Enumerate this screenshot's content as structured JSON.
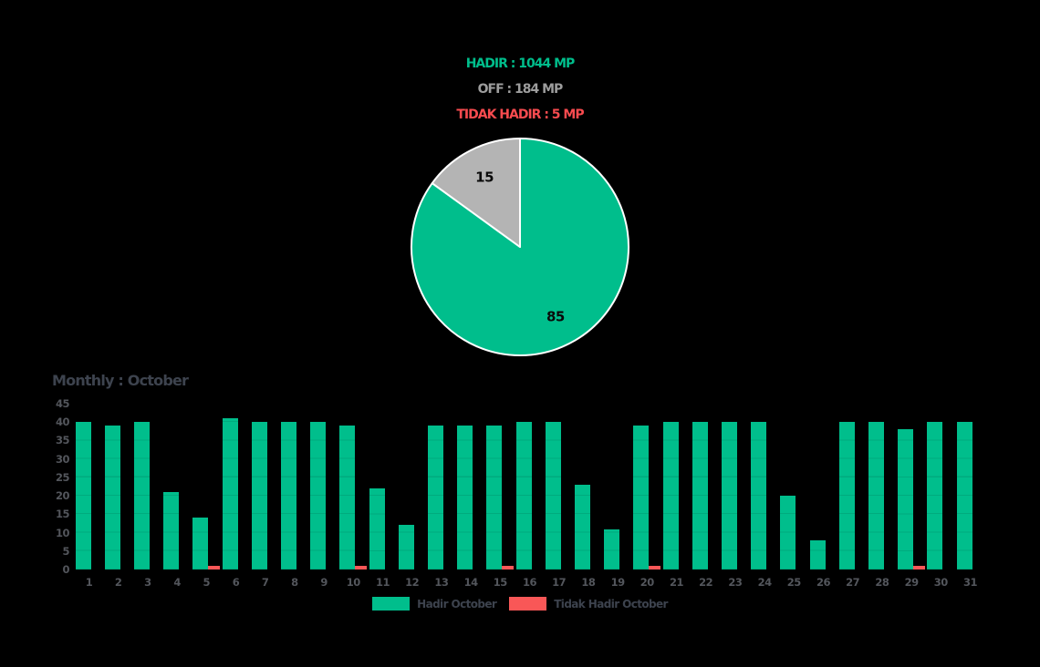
{
  "summary": {
    "hadir": "HADIR : 1044 MP",
    "off": "OFF : 184 MP",
    "tidak_hadir": "TIDAK HADIR : 5 MP"
  },
  "colors": {
    "green": "#00be8c",
    "gray": "#b4b4b4",
    "red": "#f95757",
    "text_muted": "#53565c",
    "text_dark": "#3d434e",
    "background": "#000000"
  },
  "chart_data": [
    {
      "type": "pie",
      "title": "",
      "slices": [
        {
          "name": "HADIR",
          "value": 85,
          "label": "85",
          "color": "#00be8c"
        },
        {
          "name": "OFF",
          "value": 15,
          "label": "15",
          "color": "#b4b4b4"
        }
      ],
      "start_angle_deg": -90,
      "direction": "clockwise",
      "data_labels": true,
      "slice_border_color": "#ffffff"
    },
    {
      "type": "bar",
      "title": "Monthly : October",
      "categories": [
        1,
        2,
        3,
        4,
        5,
        6,
        7,
        8,
        9,
        10,
        11,
        12,
        13,
        14,
        15,
        16,
        17,
        18,
        19,
        20,
        21,
        22,
        23,
        24,
        25,
        26,
        27,
        28,
        29,
        30,
        31
      ],
      "series": [
        {
          "name": "Hadir October",
          "color": "#00be8c",
          "values": [
            40,
            39,
            40,
            21,
            14,
            41,
            40,
            40,
            40,
            39,
            22,
            12,
            39,
            39,
            39,
            40,
            40,
            23,
            11,
            39,
            40,
            40,
            40,
            40,
            20,
            8,
            40,
            40,
            38,
            40,
            40
          ]
        },
        {
          "name": "Tidak Hadir October",
          "color": "#f95757",
          "values": [
            0,
            0,
            0,
            0,
            1,
            0,
            0,
            0,
            0,
            1,
            0,
            0,
            0,
            0,
            1,
            0,
            0,
            0,
            0,
            1,
            0,
            0,
            0,
            0,
            0,
            0,
            0,
            0,
            1,
            0,
            0
          ]
        }
      ],
      "ylim": [
        0,
        45
      ],
      "yticks": [
        0,
        5,
        10,
        15,
        20,
        25,
        30,
        35,
        40,
        45
      ],
      "xlabel": "",
      "ylabel": "",
      "grid": false,
      "legend_position": "bottom"
    }
  ]
}
